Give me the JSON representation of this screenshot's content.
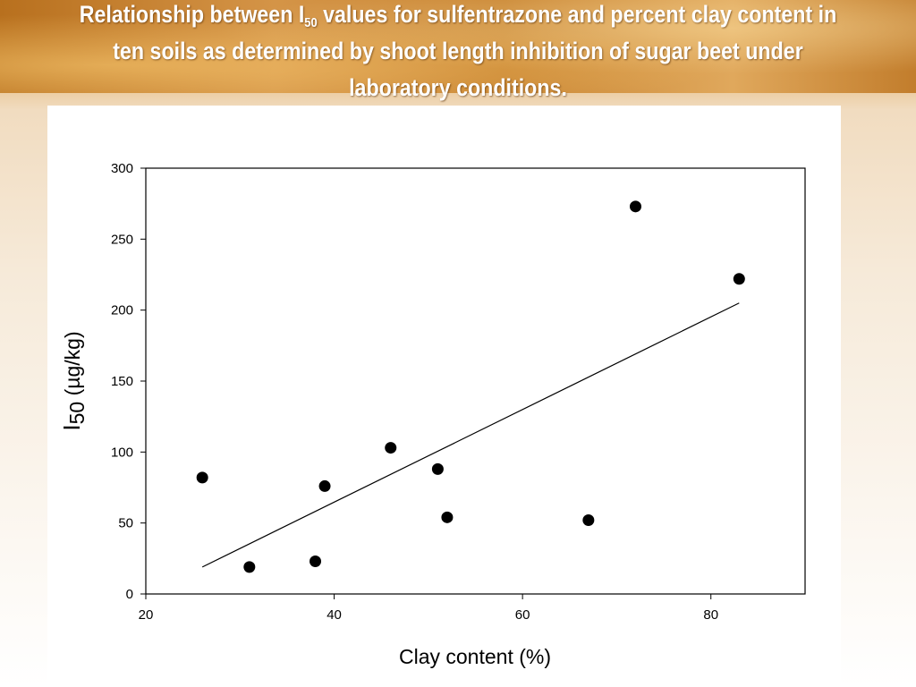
{
  "slide": {
    "title_part1": "Relationship between I",
    "title_sub": "50",
    "title_part2": " values for sulfentrazone and percent clay content in ten soils as determined by shoot length inhibition of sugar beet under laboratory conditions."
  },
  "chart_data": {
    "type": "scatter",
    "xlabel": "Clay content (%)",
    "ylabel_main": "I",
    "ylabel_sub": "50",
    "ylabel_rest": " (µg/kg)",
    "xlim": [
      20,
      90
    ],
    "ylim": [
      0,
      300
    ],
    "xticks": [
      20,
      40,
      60,
      80
    ],
    "yticks": [
      0,
      50,
      100,
      150,
      200,
      250,
      300
    ],
    "grid": false,
    "points": [
      {
        "x": 26,
        "y": 82
      },
      {
        "x": 31,
        "y": 19
      },
      {
        "x": 38,
        "y": 23
      },
      {
        "x": 39,
        "y": 76
      },
      {
        "x": 46,
        "y": 103
      },
      {
        "x": 51,
        "y": 88
      },
      {
        "x": 52,
        "y": 54
      },
      {
        "x": 67,
        "y": 52
      },
      {
        "x": 72,
        "y": 273
      },
      {
        "x": 83,
        "y": 222
      }
    ],
    "trendline": {
      "x": [
        26,
        83
      ],
      "y": [
        19,
        205
      ]
    },
    "colors": {
      "marker": "#000000",
      "line": "#000000"
    }
  }
}
